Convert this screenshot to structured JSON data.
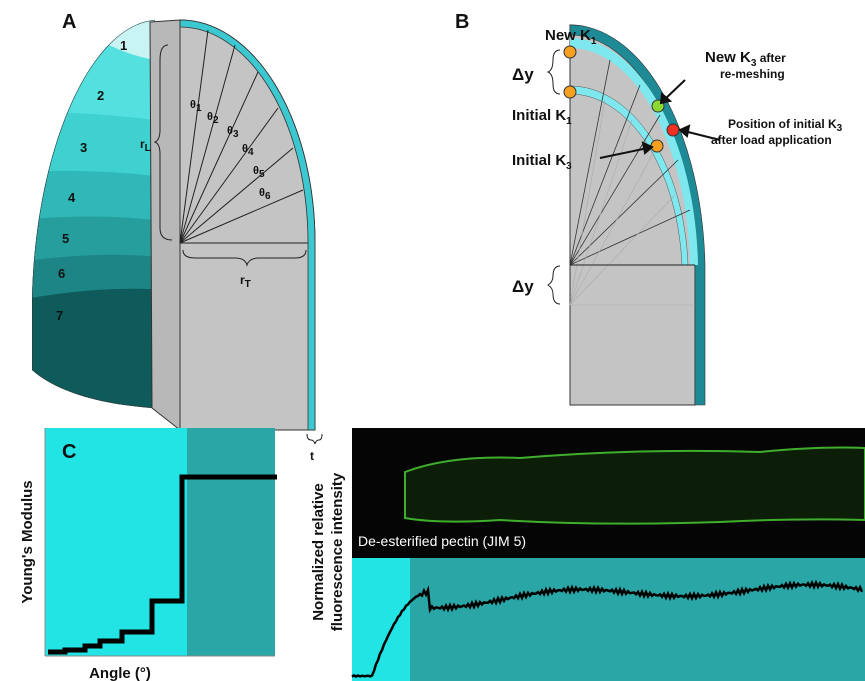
{
  "panel_a": {
    "label": "A",
    "regions": [
      "1",
      "2",
      "3",
      "4",
      "5",
      "6",
      "7"
    ],
    "angles": [
      {
        "text": "θ",
        "sub": "1"
      },
      {
        "text": "θ",
        "sub": "2"
      },
      {
        "text": "θ",
        "sub": "3"
      },
      {
        "text": "θ",
        "sub": "4"
      },
      {
        "text": "θ",
        "sub": "5"
      },
      {
        "text": "θ",
        "sub": "6"
      }
    ],
    "radius_longitudinal": {
      "text": "r",
      "sub": "L"
    },
    "radius_transverse": {
      "text": "r",
      "sub": "T"
    },
    "thickness": "t"
  },
  "panel_b": {
    "label": "B",
    "delta_y": "Δy",
    "new_k1": {
      "text": "New K",
      "sub": "1"
    },
    "initial_k1": {
      "text": "Initial K",
      "sub": "1"
    },
    "initial_k3": {
      "text": "Initial K",
      "sub": "3"
    },
    "new_k3": {
      "text": "New K",
      "sub": "3",
      "rest": " after",
      "line2": "re-meshing"
    },
    "position_k3": {
      "text": "Position of initial K",
      "sub": "3",
      "line2": "after load application"
    }
  },
  "panel_c": {
    "label": "C",
    "y_label": "Young's Modulus",
    "x_label": "Angle (°)"
  },
  "panel_d": {
    "image_caption": "De-esterified pectin (JIM 5)",
    "y_label": [
      "Normalized relative",
      "fluorescence intensity"
    ]
  }
}
